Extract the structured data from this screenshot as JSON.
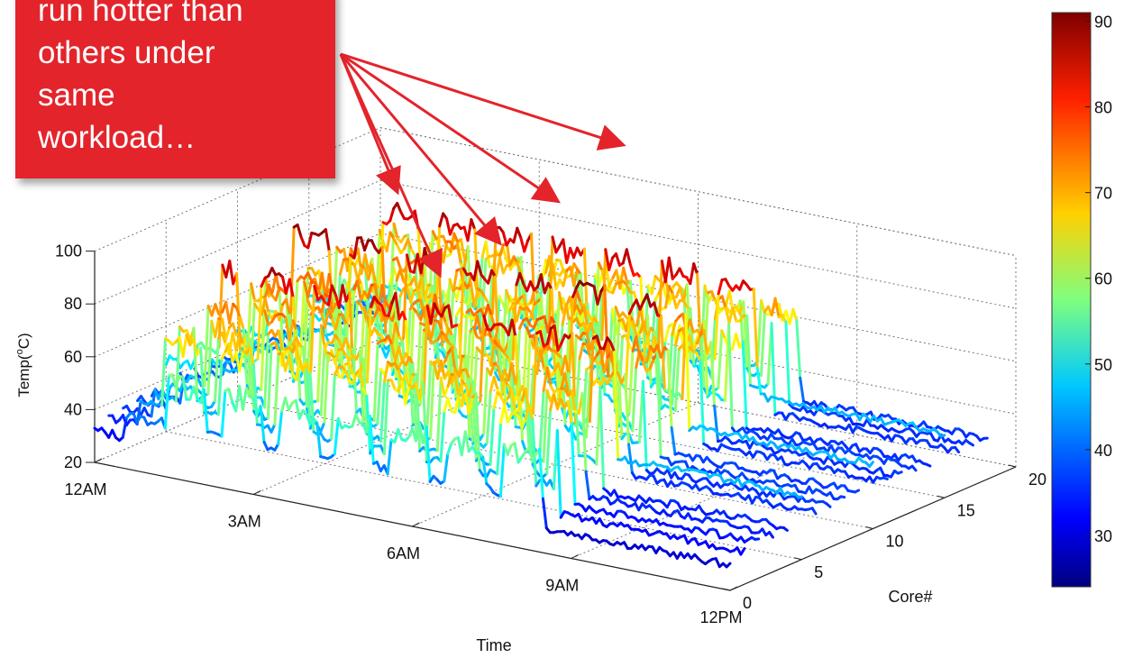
{
  "chart_data": {
    "type": "line",
    "subtype": "3d-waterfall",
    "title": "",
    "xlabel": "Time",
    "ylabel": "Core#",
    "zlabel": "Temp(°C)",
    "zlabel_parts": {
      "prefix": "Temp(",
      "superscript": "o",
      "suffix": "C)"
    },
    "x_ticks": [
      "12AM",
      "3AM",
      "6AM",
      "9AM",
      "12PM"
    ],
    "y_ticks": [
      "0",
      "5",
      "10",
      "15",
      "20"
    ],
    "z_ticks": [
      "20",
      "40",
      "60",
      "80",
      "100"
    ],
    "xlim_hours": [
      0,
      12
    ],
    "ylim": [
      0,
      20
    ],
    "zlim": [
      20,
      100
    ],
    "grid": true,
    "colormap": "jet",
    "colorbar": {
      "min": 24,
      "max": 91,
      "ticks": [
        "30",
        "40",
        "50",
        "60",
        "70",
        "80",
        "90"
      ]
    },
    "series_summary": [
      {
        "core": 0,
        "idle": 30,
        "peak": 60
      },
      {
        "core": 1,
        "idle": 33,
        "peak": 72
      },
      {
        "core": 2,
        "idle": 34,
        "peak": 74
      },
      {
        "core": 3,
        "idle": 35,
        "peak": 75
      },
      {
        "core": 4,
        "idle": 35,
        "peak": 77
      },
      {
        "core": 5,
        "idle": 45,
        "peak": 90
      },
      {
        "core": 6,
        "idle": 36,
        "peak": 76
      },
      {
        "core": 7,
        "idle": 36,
        "peak": 78
      },
      {
        "core": 8,
        "idle": 37,
        "peak": 78
      },
      {
        "core": 9,
        "idle": 37,
        "peak": 79
      },
      {
        "core": 10,
        "idle": 45,
        "peak": 92
      },
      {
        "core": 11,
        "idle": 36,
        "peak": 74
      },
      {
        "core": 12,
        "idle": 36,
        "peak": 76
      },
      {
        "core": 13,
        "idle": 37,
        "peak": 77
      },
      {
        "core": 14,
        "idle": 36,
        "peak": 70
      },
      {
        "core": 15,
        "idle": 45,
        "peak": 90
      },
      {
        "core": 16,
        "idle": 36,
        "peak": 76
      },
      {
        "core": 17,
        "idle": 36,
        "peak": 76
      },
      {
        "core": 18,
        "idle": 36,
        "peak": 72
      }
    ]
  },
  "annotation": {
    "lines": [
      "run hotter than",
      "others under",
      "same",
      "workload…"
    ]
  }
}
